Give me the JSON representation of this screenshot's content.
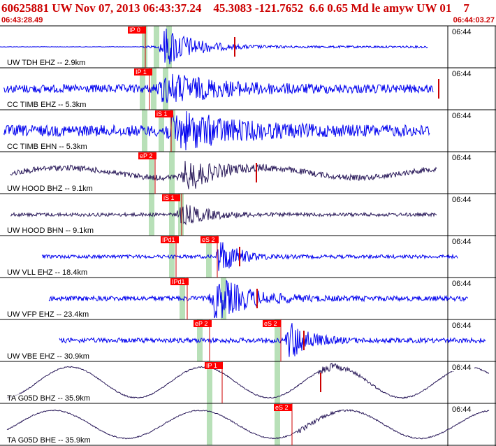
{
  "header": {
    "title": "60625881 UW Nov 07, 2013 06:43:37.24    45.3083 -121.7652  6.6 0.65 Md le amyw UW 01    7",
    "start_time": "06:43:28.49",
    "end_time": "06:44:03.27"
  },
  "time_tick_label": "06:44",
  "colors": {
    "header_text": "#cc0000",
    "trace_blue": "#0000ee",
    "trace_dark": "#2a1a5a",
    "pick_box": "#ff0000",
    "pick_line": "#cc0000",
    "window_band": "#b8e0b8"
  },
  "channels": [
    {
      "label": "UW TDH EHZ -- 2.9km",
      "color": "blue"
    },
    {
      "label": "CC TIMB EHZ -- 5.3km",
      "color": "blue"
    },
    {
      "label": "CC TIMB EHN -- 5.3km",
      "color": "blue"
    },
    {
      "label": "UW HOOD BHZ -- 9.1km",
      "color": "dark"
    },
    {
      "label": "UW HOOD BHN -- 9.1km",
      "color": "dark"
    },
    {
      "label": "UW VLL EHZ -- 18.4km",
      "color": "blue"
    },
    {
      "label": "UW VFP EHZ -- 23.4km",
      "color": "blue"
    },
    {
      "label": "UW VBE EHZ -- 30.9km",
      "color": "blue"
    },
    {
      "label": "TA G05D BHZ -- 35.9km",
      "color": "dark"
    },
    {
      "label": "TA G05D BHE -- 35.9km",
      "color": "dark"
    }
  ],
  "picks": [
    {
      "label": "IP 0",
      "channel": 0
    },
    {
      "label": "IP 1",
      "channel": 1
    },
    {
      "label": "iS 1",
      "channel": 2
    },
    {
      "label": "eP 2",
      "channel": 3
    },
    {
      "label": "iS 1",
      "channel": 4
    },
    {
      "label": "IPd1",
      "channel": 5
    },
    {
      "label": "eS 2",
      "channel": 5
    },
    {
      "label": "IPd1",
      "channel": 6
    },
    {
      "label": "eP 2",
      "channel": 7
    },
    {
      "label": "eS 2",
      "channel": 7
    },
    {
      "label": "IP 1",
      "channel": 8
    },
    {
      "label": "eS 2",
      "channel": 9
    }
  ]
}
